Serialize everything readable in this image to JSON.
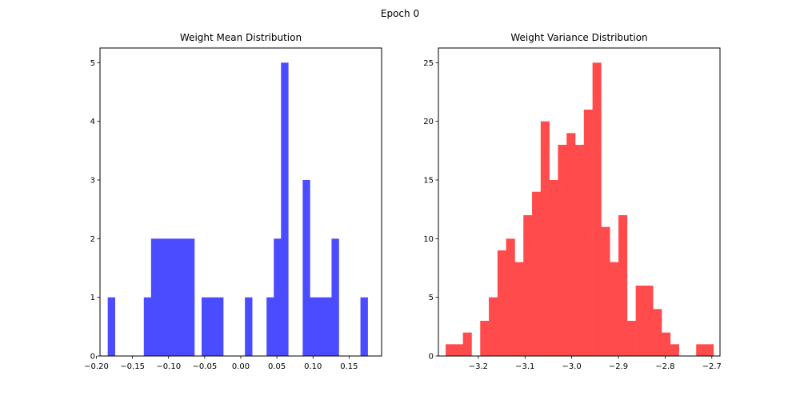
{
  "figure": {
    "suptitle": "Epoch 0"
  },
  "chart_data": [
    {
      "type": "bar",
      "title": "Weight Mean Distribution",
      "xlabel": "",
      "ylabel": "",
      "xlim": [
        -0.195,
        0.195
      ],
      "ylim": [
        0,
        5.25
      ],
      "color": "#4b4bff",
      "grid": false,
      "xticks": [
        -0.2,
        -0.15,
        -0.1,
        -0.05,
        0.0,
        0.05,
        0.1,
        0.15
      ],
      "xtick_labels": [
        "−0.20",
        "−0.15",
        "−0.10",
        "−0.05",
        "0.00",
        "0.05",
        "0.10",
        "0.15"
      ],
      "yticks": [
        0,
        1,
        2,
        3,
        4,
        5
      ],
      "ytick_labels": [
        "0",
        "1",
        "2",
        "3",
        "4",
        "5"
      ],
      "bins": [
        {
          "x0": -0.1843,
          "x1": -0.1743,
          "value": 1
        },
        {
          "x0": -0.1743,
          "x1": -0.1643,
          "value": 0
        },
        {
          "x0": -0.1643,
          "x1": -0.1543,
          "value": 0
        },
        {
          "x0": -0.1543,
          "x1": -0.1443,
          "value": 0
        },
        {
          "x0": -0.1443,
          "x1": -0.1343,
          "value": 0
        },
        {
          "x0": -0.1343,
          "x1": -0.1243,
          "value": 1
        },
        {
          "x0": -0.1243,
          "x1": -0.1143,
          "value": 2
        },
        {
          "x0": -0.1143,
          "x1": -0.1043,
          "value": 2
        },
        {
          "x0": -0.1043,
          "x1": -0.0943,
          "value": 2
        },
        {
          "x0": -0.0943,
          "x1": -0.0843,
          "value": 2
        },
        {
          "x0": -0.0843,
          "x1": -0.0743,
          "value": 2
        },
        {
          "x0": -0.0743,
          "x1": -0.0643,
          "value": 2
        },
        {
          "x0": -0.0643,
          "x1": -0.0543,
          "value": 0
        },
        {
          "x0": -0.0543,
          "x1": -0.0443,
          "value": 1
        },
        {
          "x0": -0.0443,
          "x1": -0.0343,
          "value": 1
        },
        {
          "x0": -0.0343,
          "x1": -0.0243,
          "value": 1
        },
        {
          "x0": -0.0243,
          "x1": -0.0143,
          "value": 0
        },
        {
          "x0": -0.0143,
          "x1": -0.0043,
          "value": 0
        },
        {
          "x0": -0.0043,
          "x1": 0.0057,
          "value": 0
        },
        {
          "x0": 0.0057,
          "x1": 0.0157,
          "value": 1
        },
        {
          "x0": 0.0157,
          "x1": 0.0257,
          "value": 0
        },
        {
          "x0": 0.0257,
          "x1": 0.0357,
          "value": 0
        },
        {
          "x0": 0.0357,
          "x1": 0.0457,
          "value": 1
        },
        {
          "x0": 0.0457,
          "x1": 0.0557,
          "value": 2
        },
        {
          "x0": 0.0557,
          "x1": 0.0657,
          "value": 5
        },
        {
          "x0": 0.0657,
          "x1": 0.0757,
          "value": 0
        },
        {
          "x0": 0.0757,
          "x1": 0.0857,
          "value": 0
        },
        {
          "x0": 0.0857,
          "x1": 0.0957,
          "value": 3
        },
        {
          "x0": 0.0957,
          "x1": 0.1057,
          "value": 1
        },
        {
          "x0": 0.1057,
          "x1": 0.1157,
          "value": 1
        },
        {
          "x0": 0.1157,
          "x1": 0.1257,
          "value": 1
        },
        {
          "x0": 0.1257,
          "x1": 0.1357,
          "value": 2
        },
        {
          "x0": 0.1357,
          "x1": 0.1457,
          "value": 0
        },
        {
          "x0": 0.1457,
          "x1": 0.1557,
          "value": 0
        },
        {
          "x0": 0.1557,
          "x1": 0.1657,
          "value": 0
        },
        {
          "x0": 0.1657,
          "x1": 0.1757,
          "value": 1
        }
      ]
    },
    {
      "type": "bar",
      "title": "Weight Variance Distribution",
      "xlabel": "",
      "ylabel": "",
      "xlim": [
        -3.2855,
        -2.6825
      ],
      "ylim": [
        0,
        26.25
      ],
      "color": "#ff4b4b",
      "grid": false,
      "xticks": [
        -3.2,
        -3.1,
        -3.0,
        -2.9,
        -2.8,
        -2.7
      ],
      "xtick_labels": [
        "−3.2",
        "−3.1",
        "−3.0",
        "−2.9",
        "−2.8",
        "−2.7"
      ],
      "yticks": [
        0,
        5,
        10,
        15,
        20,
        25
      ],
      "ytick_labels": [
        "0",
        "5",
        "10",
        "15",
        "20",
        "25"
      ],
      "bins": [
        {
          "x0": -3.27,
          "x1": -3.2515,
          "value": 1
        },
        {
          "x0": -3.2515,
          "x1": -3.233,
          "value": 1
        },
        {
          "x0": -3.233,
          "x1": -3.2145,
          "value": 2
        },
        {
          "x0": -3.2145,
          "x1": -3.196,
          "value": 0
        },
        {
          "x0": -3.196,
          "x1": -3.1775,
          "value": 3
        },
        {
          "x0": -3.1775,
          "x1": -3.159,
          "value": 5
        },
        {
          "x0": -3.159,
          "x1": -3.1405,
          "value": 9
        },
        {
          "x0": -3.1405,
          "x1": -3.122,
          "value": 10
        },
        {
          "x0": -3.122,
          "x1": -3.1035,
          "value": 8
        },
        {
          "x0": -3.1035,
          "x1": -3.085,
          "value": 12
        },
        {
          "x0": -3.085,
          "x1": -3.0665,
          "value": 14
        },
        {
          "x0": -3.0665,
          "x1": -3.048,
          "value": 20
        },
        {
          "x0": -3.048,
          "x1": -3.0295,
          "value": 15
        },
        {
          "x0": -3.0295,
          "x1": -3.011,
          "value": 18
        },
        {
          "x0": -3.011,
          "x1": -2.9925,
          "value": 19
        },
        {
          "x0": -2.9925,
          "x1": -2.974,
          "value": 18
        },
        {
          "x0": -2.974,
          "x1": -2.9555,
          "value": 21
        },
        {
          "x0": -2.9555,
          "x1": -2.937,
          "value": 25
        },
        {
          "x0": -2.937,
          "x1": -2.9185,
          "value": 11
        },
        {
          "x0": -2.9185,
          "x1": -2.9,
          "value": 8
        },
        {
          "x0": -2.9,
          "x1": -2.8815,
          "value": 12
        },
        {
          "x0": -2.8815,
          "x1": -2.863,
          "value": 3
        },
        {
          "x0": -2.863,
          "x1": -2.8445,
          "value": 6
        },
        {
          "x0": -2.8445,
          "x1": -2.826,
          "value": 6
        },
        {
          "x0": -2.826,
          "x1": -2.8075,
          "value": 4
        },
        {
          "x0": -2.8075,
          "x1": -2.789,
          "value": 2
        },
        {
          "x0": -2.789,
          "x1": -2.7705,
          "value": 1
        },
        {
          "x0": -2.7705,
          "x1": -2.752,
          "value": 0
        },
        {
          "x0": -2.752,
          "x1": -2.7335,
          "value": 0
        },
        {
          "x0": -2.7335,
          "x1": -2.715,
          "value": 1
        },
        {
          "x0": -2.715,
          "x1": -2.6965,
          "value": 1
        }
      ]
    }
  ]
}
